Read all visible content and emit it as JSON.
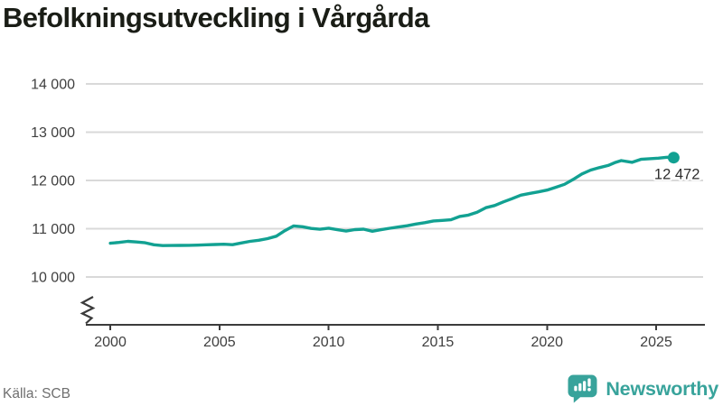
{
  "title": "Befolkningsutveckling i Vårgårda",
  "source": "Källa: SCB",
  "branding": {
    "name": "Newsworthy",
    "icon": "newsworthy-logo-icon"
  },
  "colors": {
    "line": "#12a192",
    "dot": "#12a192",
    "grid": "#d9d9d9",
    "axis": "#3b3b3b",
    "tick_label": "#3f3f3f",
    "title": "#1a1d16",
    "annotation": "#2e2e2e",
    "source": "#6f6f6f",
    "brand": "#38a39b",
    "background": "#ffffff"
  },
  "chart_data": {
    "type": "line",
    "title": "Befolkningsutveckling i Vårgårda",
    "source": "Källa: SCB",
    "grid": "horizontal",
    "legend": "none",
    "axis_break_bottom_left": true,
    "xlim": [
      1998.88,
      2027.15
    ],
    "ylim": [
      10000,
      14000
    ],
    "yticks": [
      {
        "value": 10000,
        "label": "10 000"
      },
      {
        "value": 11000,
        "label": "11 000"
      },
      {
        "value": 12000,
        "label": "12 000"
      },
      {
        "value": 13000,
        "label": "13 000"
      },
      {
        "value": 14000,
        "label": "14 000"
      }
    ],
    "xticks": [
      {
        "value": 2000,
        "label": "2000"
      },
      {
        "value": 2005,
        "label": "2005"
      },
      {
        "value": 2010,
        "label": "2010"
      },
      {
        "value": 2015,
        "label": "2015"
      },
      {
        "value": 2020,
        "label": "2020"
      },
      {
        "value": 2025,
        "label": "2025"
      }
    ],
    "last_value_label": "12 472",
    "last_point": [
      2025.8,
      12472
    ],
    "points": [
      [
        2000.0,
        10700
      ],
      [
        2000.4,
        10715
      ],
      [
        2000.8,
        10738
      ],
      [
        2001.2,
        10725
      ],
      [
        2001.6,
        10708
      ],
      [
        2002.0,
        10668
      ],
      [
        2002.4,
        10650
      ],
      [
        2002.8,
        10652
      ],
      [
        2003.2,
        10655
      ],
      [
        2003.6,
        10656
      ],
      [
        2004.0,
        10660
      ],
      [
        2004.4,
        10668
      ],
      [
        2004.8,
        10672
      ],
      [
        2005.2,
        10678
      ],
      [
        2005.6,
        10670
      ],
      [
        2006.0,
        10705
      ],
      [
        2006.4,
        10738
      ],
      [
        2006.8,
        10760
      ],
      [
        2007.2,
        10795
      ],
      [
        2007.6,
        10845
      ],
      [
        2008.0,
        10960
      ],
      [
        2008.4,
        11058
      ],
      [
        2008.8,
        11042
      ],
      [
        2009.2,
        11005
      ],
      [
        2009.6,
        10988
      ],
      [
        2010.0,
        11012
      ],
      [
        2010.4,
        10980
      ],
      [
        2010.8,
        10952
      ],
      [
        2011.2,
        10982
      ],
      [
        2011.6,
        10990
      ],
      [
        2012.0,
        10948
      ],
      [
        2012.4,
        10980
      ],
      [
        2012.8,
        11010
      ],
      [
        2013.2,
        11035
      ],
      [
        2013.6,
        11062
      ],
      [
        2014.0,
        11098
      ],
      [
        2014.4,
        11125
      ],
      [
        2014.8,
        11160
      ],
      [
        2015.2,
        11172
      ],
      [
        2015.6,
        11185
      ],
      [
        2016.0,
        11255
      ],
      [
        2016.4,
        11282
      ],
      [
        2016.8,
        11340
      ],
      [
        2017.2,
        11435
      ],
      [
        2017.6,
        11480
      ],
      [
        2018.0,
        11555
      ],
      [
        2018.4,
        11622
      ],
      [
        2018.8,
        11695
      ],
      [
        2019.2,
        11730
      ],
      [
        2019.6,
        11762
      ],
      [
        2020.0,
        11800
      ],
      [
        2020.4,
        11858
      ],
      [
        2020.8,
        11920
      ],
      [
        2021.2,
        12020
      ],
      [
        2021.6,
        12135
      ],
      [
        2022.0,
        12215
      ],
      [
        2022.4,
        12265
      ],
      [
        2022.8,
        12310
      ],
      [
        2023.1,
        12368
      ],
      [
        2023.4,
        12412
      ],
      [
        2023.9,
        12375
      ],
      [
        2024.3,
        12438
      ],
      [
        2024.7,
        12450
      ],
      [
        2025.1,
        12462
      ],
      [
        2025.5,
        12480
      ],
      [
        2025.8,
        12472
      ]
    ]
  }
}
